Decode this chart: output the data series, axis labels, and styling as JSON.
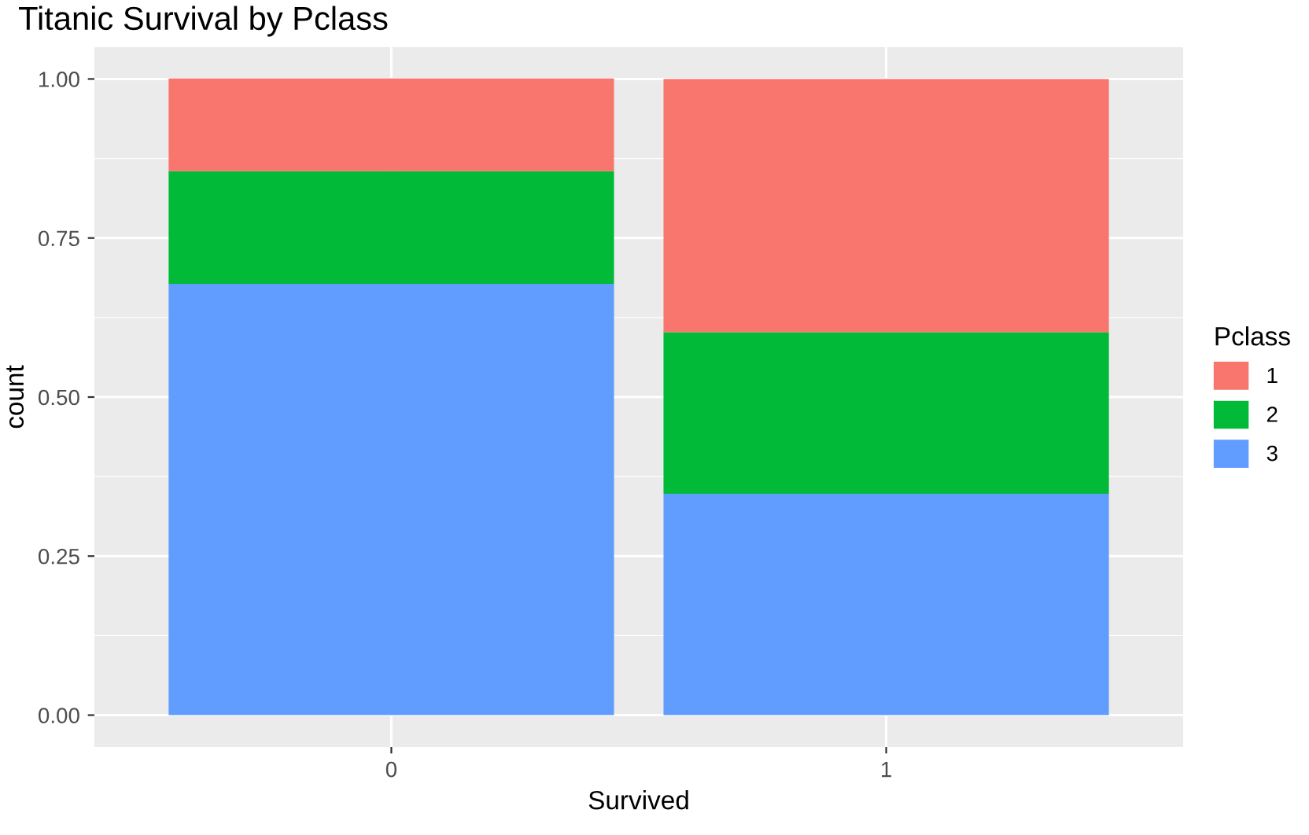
{
  "chart_data": {
    "type": "bar",
    "title": "Titanic Survival by Pclass",
    "xlabel": "Survived",
    "ylabel": "count",
    "legend_title": "Pclass",
    "categories": [
      "0",
      "1"
    ],
    "series": [
      {
        "name": "3",
        "color": "#619cff",
        "values": [
          0.678,
          0.348
        ]
      },
      {
        "name": "2",
        "color": "#00ba38",
        "values": [
          0.177,
          0.254
        ]
      },
      {
        "name": "1",
        "color": "#f8766d",
        "values": [
          0.146,
          0.398
        ]
      }
    ],
    "stacked": true,
    "ylim": [
      -0.05,
      1.05
    ],
    "yticks": [
      {
        "value": 0,
        "label": "0.00"
      },
      {
        "value": 0.25,
        "label": "0.25"
      },
      {
        "value": 0.5,
        "label": "0.50"
      },
      {
        "value": 0.75,
        "label": "0.75"
      },
      {
        "value": 1,
        "label": "1.00"
      }
    ],
    "grid": true,
    "legend": "right"
  }
}
